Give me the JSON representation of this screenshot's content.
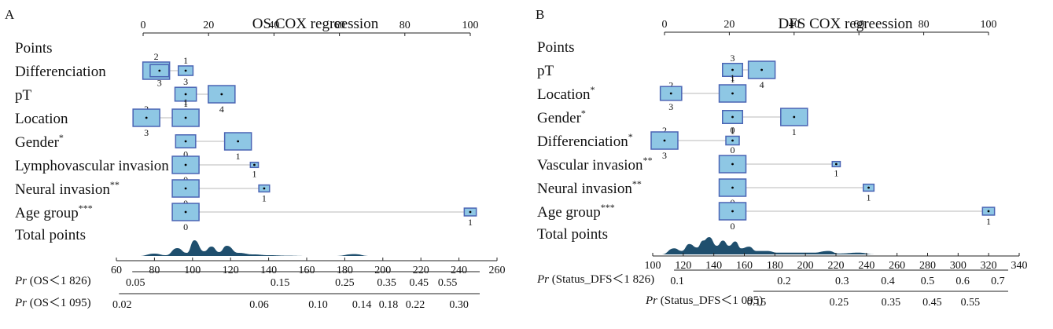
{
  "style": {
    "box_fill": "#8ec7e4",
    "box_stroke": "#4a64b4",
    "density_fill": "#1f4f6e",
    "line_color": "#222222",
    "connector_color": "#c8c8c8"
  },
  "chart_data": [
    {
      "type": "nomogram",
      "panel_label": "A",
      "title": "OS COX regreession",
      "points_label": "Points",
      "points_axis": {
        "range": [
          0,
          100
        ],
        "ticks": [
          "0",
          "20",
          "40",
          "60",
          "80",
          "100"
        ]
      },
      "variables": [
        {
          "name": "Differenciation",
          "sig": "",
          "levels": [
            {
              "label": "2",
              "points": 4,
              "size": 1.0,
              "dot": "",
              "below": false
            },
            {
              "label": "3",
              "points": 5,
              "size": 0.7,
              "dot": "",
              "below": true
            },
            {
              "label": "1",
              "points": 13,
              "size": 0.55,
              "dot": "",
              "below": false
            }
          ]
        },
        {
          "name": "pT",
          "sig": "",
          "levels": [
            {
              "label": "3",
              "points": 13,
              "size": 0.8,
              "dot": "",
              "below": false
            },
            {
              "label": "1",
              "points": 13,
              "size": 0.01,
              "dot": "",
              "below": true
            },
            {
              "label": "4",
              "points": 24,
              "size": 1.0,
              "dot": "",
              "below": true
            }
          ]
        },
        {
          "name": "Location",
          "sig": "",
          "levels": [
            {
              "label": "2",
              "points": 1,
              "size": 0.35,
              "dot": "",
              "below": false
            },
            {
              "label": "3",
              "points": 1,
              "size": 1.0,
              "dot": "",
              "below": true
            },
            {
              "label": "1",
              "points": 13,
              "size": 1.0,
              "dot": "",
              "below": false
            }
          ]
        },
        {
          "name": "Gender",
          "sig": "*",
          "levels": [
            {
              "label": "0",
              "points": 13,
              "size": 0.75,
              "dot": "",
              "below": true
            },
            {
              "label": "1",
              "points": 29,
              "size": 1.0,
              "dot": "",
              "below": true
            }
          ]
        },
        {
          "name": "Lymphovascular invasion",
          "sig": "",
          "levels": [
            {
              "label": "0",
              "points": 13,
              "size": 1.0,
              "dot": "",
              "below": true
            },
            {
              "label": "1",
              "points": 34,
              "size": 0.3,
              "dot": "",
              "below": true
            }
          ]
        },
        {
          "name": "Neural invasion",
          "sig": "**",
          "levels": [
            {
              "label": "0",
              "points": 13,
              "size": 1.0,
              "dot": "",
              "below": true
            },
            {
              "label": "1",
              "points": 37,
              "size": 0.4,
              "dot": "",
              "below": true
            }
          ]
        },
        {
          "name": "Age group",
          "sig": "***",
          "levels": [
            {
              "label": "0",
              "points": 13,
              "size": 1.0,
              "dot": "",
              "below": true
            },
            {
              "label": "1",
              "points": 100,
              "size": 0.45,
              "dot": "",
              "below": true
            }
          ]
        }
      ],
      "total_points_label": "Total points",
      "total_axis": {
        "range": [
          60,
          260
        ],
        "ticks": [
          "60",
          "80",
          "100",
          "120",
          "140",
          "160",
          "180",
          "200",
          "220",
          "240",
          "260"
        ]
      },
      "density": [
        {
          "x": 72,
          "h": 0.0
        },
        {
          "x": 80,
          "h": 0.15
        },
        {
          "x": 86,
          "h": 0.05
        },
        {
          "x": 92,
          "h": 0.5
        },
        {
          "x": 97,
          "h": 0.2
        },
        {
          "x": 101,
          "h": 1.0
        },
        {
          "x": 106,
          "h": 0.3
        },
        {
          "x": 110,
          "h": 0.6
        },
        {
          "x": 114,
          "h": 0.25
        },
        {
          "x": 118,
          "h": 0.65
        },
        {
          "x": 124,
          "h": 0.2
        },
        {
          "x": 132,
          "h": 0.1
        },
        {
          "x": 140,
          "h": 0.05
        },
        {
          "x": 150,
          "h": 0.02
        },
        {
          "x": 160,
          "h": 0.0
        },
        {
          "x": 175,
          "h": 0.0
        },
        {
          "x": 185,
          "h": 0.12
        },
        {
          "x": 193,
          "h": 0.0
        },
        {
          "x": 200,
          "h": 0.0
        }
      ],
      "prob_axes": [
        {
          "prefix": "Pr",
          "label": "(OS＜1 826)",
          "ticks": [
            {
              "value": "0.05",
              "at": 70
            },
            {
              "value": "0.15",
              "at": 146
            },
            {
              "value": "0.25",
              "at": 180
            },
            {
              "value": "0.35",
              "at": 202
            },
            {
              "value": "0.45",
              "at": 219
            },
            {
              "value": "0.55",
              "at": 234
            }
          ]
        },
        {
          "prefix": "Pr",
          "label": "(OS＜1 095)",
          "ticks": [
            {
              "value": "0.02",
              "at": 63
            },
            {
              "value": "0.06",
              "at": 135
            },
            {
              "value": "0.10",
              "at": 166
            },
            {
              "value": "0.14",
              "at": 189
            },
            {
              "value": "0.18",
              "at": 203
            },
            {
              "value": "0.22",
              "at": 217
            },
            {
              "value": "0.30",
              "at": 240
            }
          ]
        }
      ]
    },
    {
      "type": "nomogram",
      "panel_label": "B",
      "title": "DFS COX regreession",
      "points_label": "Points",
      "points_axis": {
        "range": [
          0,
          100
        ],
        "ticks": [
          "0",
          "20",
          "40",
          "60",
          "80",
          "100"
        ]
      },
      "variables": [
        {
          "name": "pT",
          "sig": "",
          "levels": [
            {
              "label": "3",
              "points": 21,
              "size": 0.75,
              "dot": "",
              "below": false
            },
            {
              "label": "1",
              "points": 21,
              "size": 0.01,
              "dot": "",
              "below": true
            },
            {
              "label": "4",
              "points": 30,
              "size": 1.0,
              "dot": "",
              "below": true
            }
          ]
        },
        {
          "name": "Location",
          "sig": "*",
          "levels": [
            {
              "label": "2",
              "points": 2,
              "size": 0.3,
              "dot": "",
              "below": false
            },
            {
              "label": "3",
              "points": 2,
              "size": 0.8,
              "dot": "",
              "below": true
            },
            {
              "label": "1",
              "points": 21,
              "size": 1.0,
              "dot": "",
              "below": false
            }
          ]
        },
        {
          "name": "Gender",
          "sig": "*",
          "levels": [
            {
              "label": "0",
              "points": 21,
              "size": 0.75,
              "dot": "",
              "below": true
            },
            {
              "label": "1",
              "points": 40,
              "size": 1.0,
              "dot": "",
              "below": true
            }
          ]
        },
        {
          "name": "Differenciation",
          "sig": "*",
          "levels": [
            {
              "label": "2",
              "points": 0,
              "size": 0.55,
              "dot": "",
              "below": false
            },
            {
              "label": "3",
              "points": 0,
              "size": 1.0,
              "dot": "",
              "below": true
            },
            {
              "label": "1",
              "points": 21,
              "size": 0.5,
              "dot": "",
              "below": false
            }
          ]
        },
        {
          "name": "Vascular invasion",
          "sig": "**",
          "levels": [
            {
              "label": "0",
              "points": 21,
              "size": 1.0,
              "dot": "",
              "below": false
            },
            {
              "label": "1",
              "points": 53,
              "size": 0.3,
              "dot": "",
              "below": true
            }
          ]
        },
        {
          "name": "Neural invasion",
          "sig": "**",
          "levels": [
            {
              "label": "0",
              "points": 21,
              "size": 1.0,
              "dot": "",
              "below": true
            },
            {
              "label": "1",
              "points": 63,
              "size": 0.4,
              "dot": "",
              "below": true
            }
          ]
        },
        {
          "name": "Age group",
          "sig": "***",
          "levels": [
            {
              "label": "0",
              "points": 21,
              "size": 1.0,
              "dot": "",
              "below": true
            },
            {
              "label": "1",
              "points": 100,
              "size": 0.45,
              "dot": "",
              "below": true
            }
          ]
        }
      ],
      "total_points_label": "Total points",
      "total_axis": {
        "range": [
          100,
          340
        ],
        "ticks": [
          "100",
          "120",
          "140",
          "160",
          "180",
          "200",
          "220",
          "240",
          "260",
          "280",
          "300",
          "320",
          "340"
        ]
      },
      "density": [
        {
          "x": 106,
          "h": 0.0
        },
        {
          "x": 114,
          "h": 0.35
        },
        {
          "x": 119,
          "h": 0.2
        },
        {
          "x": 124,
          "h": 0.6
        },
        {
          "x": 129,
          "h": 0.4
        },
        {
          "x": 133,
          "h": 0.8
        },
        {
          "x": 137,
          "h": 1.0
        },
        {
          "x": 142,
          "h": 0.5
        },
        {
          "x": 146,
          "h": 0.8
        },
        {
          "x": 150,
          "h": 0.5
        },
        {
          "x": 154,
          "h": 0.75
        },
        {
          "x": 158,
          "h": 0.35
        },
        {
          "x": 163,
          "h": 0.45
        },
        {
          "x": 168,
          "h": 0.2
        },
        {
          "x": 175,
          "h": 0.2
        },
        {
          "x": 182,
          "h": 0.1
        },
        {
          "x": 192,
          "h": 0.1
        },
        {
          "x": 205,
          "h": 0.1
        },
        {
          "x": 215,
          "h": 0.2
        },
        {
          "x": 222,
          "h": 0.05
        },
        {
          "x": 235,
          "h": 0.1
        },
        {
          "x": 245,
          "h": 0.0
        }
      ],
      "prob_axes": [
        {
          "prefix": "Pr",
          "label": "(Status_DFS＜1 826)",
          "ticks": [
            {
              "value": "0.1",
              "at": 116
            },
            {
              "value": "0.2",
              "at": 186
            },
            {
              "value": "0.3",
              "at": 224
            },
            {
              "value": "0.4",
              "at": 254
            },
            {
              "value": "0.5",
              "at": 280
            },
            {
              "value": "0.6",
              "at": 303
            },
            {
              "value": "0.7",
              "at": 326
            }
          ]
        },
        {
          "prefix": "Pr",
          "label": "(Status_DFS＜1 095)",
          "ticks": [
            {
              "value": "0.15",
              "at": 168
            },
            {
              "value": "0.25",
              "at": 222
            },
            {
              "value": "0.35",
              "at": 256
            },
            {
              "value": "0.45",
              "at": 283
            },
            {
              "value": "0.55",
              "at": 308
            }
          ]
        }
      ]
    }
  ]
}
